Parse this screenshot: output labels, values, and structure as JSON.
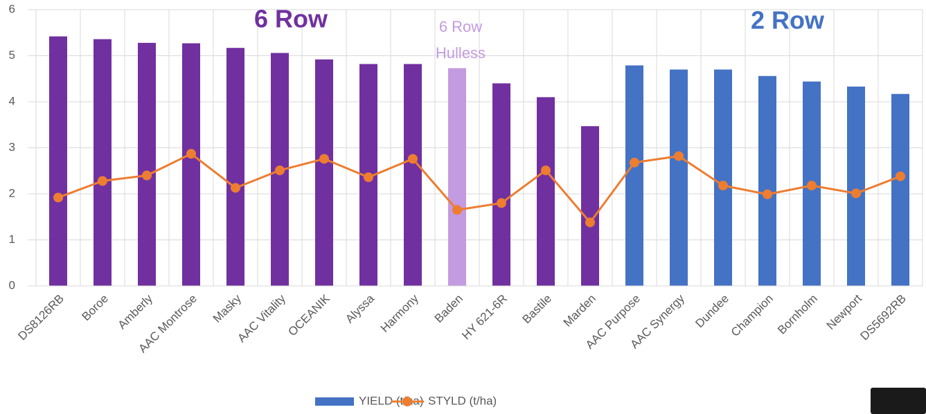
{
  "chart_data": {
    "type": "bar_line",
    "categories": [
      "DS8126RB",
      "Boroe",
      "Amberly",
      "AAC Montrose",
      "Masky",
      "AAC Vitality",
      "OCEANIK",
      "Alyssa",
      "Harmony",
      "Baden",
      "HY 621-6R",
      "Bastile",
      "Marden",
      "AAC Purpose",
      "AAC Synergy",
      "Dundee",
      "Champion",
      "Bornholm",
      "Newport",
      "DS5692RB"
    ],
    "series": [
      {
        "name": "YIELD (t/ha)",
        "type": "bar",
        "color": "#4472c4",
        "colors": [
          "#7030a0",
          "#7030a0",
          "#7030a0",
          "#7030a0",
          "#7030a0",
          "#7030a0",
          "#7030a0",
          "#7030a0",
          "#7030a0",
          "#c39be0",
          "#7030a0",
          "#7030a0",
          "#7030a0",
          "#4472c4",
          "#4472c4",
          "#4472c4",
          "#4472c4",
          "#4472c4",
          "#4472c4",
          "#4472c4"
        ],
        "values": [
          5.42,
          5.36,
          5.28,
          5.27,
          5.17,
          5.06,
          4.92,
          4.82,
          4.82,
          4.73,
          4.4,
          4.1,
          3.47,
          4.79,
          4.7,
          4.7,
          4.56,
          4.44,
          4.33,
          4.17
        ]
      },
      {
        "name": "STYLD (t/ha)",
        "type": "line",
        "color": "#ed7d31",
        "values": [
          1.92,
          2.28,
          2.4,
          2.87,
          2.13,
          2.51,
          2.76,
          2.36,
          2.76,
          1.65,
          1.8,
          2.51,
          1.38,
          2.68,
          2.82,
          2.18,
          1.99,
          2.18,
          2.01,
          2.38
        ]
      }
    ],
    "ylim": [
      0,
      6
    ],
    "yticks": [
      0,
      1,
      2,
      3,
      4,
      5,
      6
    ],
    "grid": true,
    "annotations": [
      {
        "lines": [
          "6 Row"
        ],
        "color": "#7030a0"
      },
      {
        "lines": [
          "6 Row",
          "Hulless"
        ],
        "color": "#c39be0"
      },
      {
        "lines": [
          "2 Row"
        ],
        "color": "#4472c4"
      }
    ],
    "legend": "bottom"
  }
}
